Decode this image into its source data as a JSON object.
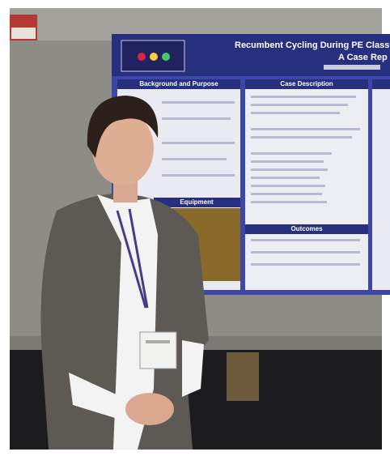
{
  "poster": {
    "title": "Recumbent Cycling During PE Class for an A",
    "subtitle": "A Case Rep",
    "sections": [
      "Background and Purpose",
      "Case Description",
      "Equipment",
      "Outcomes"
    ]
  }
}
